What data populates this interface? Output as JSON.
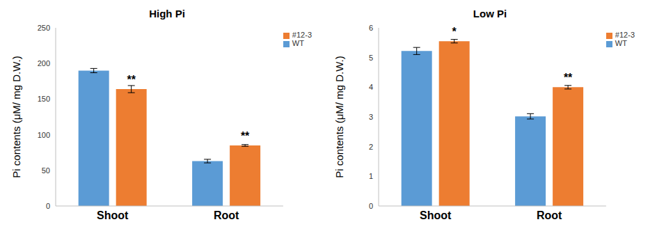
{
  "chart_data": [
    {
      "type": "bar",
      "title": "High Pi",
      "y_label": "Pi contents (μM/ mg D.W.)",
      "categories": [
        "Shoot",
        "Root"
      ],
      "series": [
        {
          "name": "WT",
          "color": "#5b9bd5",
          "values": [
            190,
            63
          ],
          "errors": [
            3,
            2.5
          ]
        },
        {
          "name": "#12-3",
          "color": "#ed7d31",
          "values": [
            164,
            85
          ],
          "errors": [
            5,
            1.2
          ],
          "annotations": [
            "**",
            "**"
          ]
        }
      ],
      "ylim": [
        0,
        250
      ],
      "yticks": [
        0,
        50,
        100,
        150,
        200,
        250
      ],
      "grid": false,
      "legend": "top-right"
    },
    {
      "type": "bar",
      "title": "Low Pi",
      "y_label": "Pi contents (μM/ mg D.W.)",
      "categories": [
        "Shoot",
        "Root"
      ],
      "series": [
        {
          "name": "WT",
          "color": "#5b9bd5",
          "values": [
            5.22,
            3.02
          ],
          "errors": [
            0.12,
            0.09
          ]
        },
        {
          "name": "#12-3",
          "color": "#ed7d31",
          "values": [
            5.55,
            4.0
          ],
          "errors": [
            0.06,
            0.06
          ],
          "annotations": [
            "*",
            "**"
          ]
        }
      ],
      "ylim": [
        0,
        6
      ],
      "yticks": [
        0,
        1,
        2,
        3,
        4,
        5,
        6
      ],
      "grid": false,
      "legend": "top-right"
    }
  ]
}
